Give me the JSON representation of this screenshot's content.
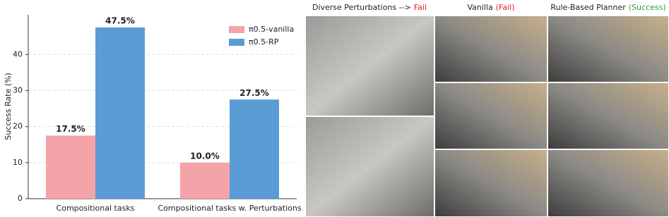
{
  "chart_data": {
    "type": "bar",
    "y_label": "Success Rate (%)",
    "categories": [
      "Compositional tasks",
      "Compositional tasks w. Perturbations"
    ],
    "series": [
      {
        "name": "π0.5-vanilla",
        "color": "#f4a3a8",
        "values": [
          17.5,
          10.0
        ],
        "value_labels": [
          "17.5%",
          "10.0%"
        ]
      },
      {
        "name": "π0.5-RP",
        "color": "#5b9bd5",
        "values": [
          47.5,
          27.5
        ],
        "value_labels": [
          "47.5%",
          "27.5%"
        ]
      }
    ],
    "ylim": [
      0,
      51
    ],
    "yticks": [
      0,
      10,
      20,
      30,
      40
    ],
    "grid": true,
    "legend": "upper right"
  },
  "image_panels": [
    {
      "title": "Diverse Perturbations -->",
      "status": "Fail",
      "status_color": "#e02020"
    },
    {
      "title": "Vanilla",
      "status": "(Fail)",
      "status_color": "#e02020"
    },
    {
      "title": "Rule-Based Planner",
      "status": "(Success)",
      "status_color": "#2ca02c"
    }
  ]
}
